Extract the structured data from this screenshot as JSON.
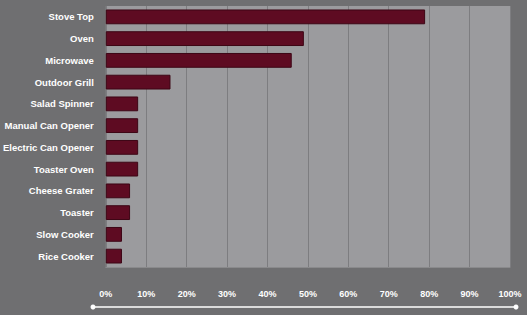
{
  "chart_data": {
    "type": "bar",
    "orientation": "horizontal",
    "categories": [
      "Stove Top",
      "Oven",
      "Microwave",
      "Outdoor Grill",
      "Salad Spinner",
      "Manual Can Opener",
      "Electric Can Opener",
      "Toaster Oven",
      "Cheese Grater",
      "Toaster",
      "Slow Cooker",
      "Rice Cooker"
    ],
    "values": [
      79,
      49,
      46,
      16,
      8,
      8,
      8,
      8,
      6,
      6,
      4,
      4
    ],
    "color": "#5e0b22",
    "xlim": [
      0,
      100
    ],
    "xticks": [
      {
        "value": 0,
        "label": "0%"
      },
      {
        "value": 10,
        "label": "10%"
      },
      {
        "value": 20,
        "label": "20%"
      },
      {
        "value": 30,
        "label": "30%"
      },
      {
        "value": 40,
        "label": "40%"
      },
      {
        "value": 50,
        "label": "50%"
      },
      {
        "value": 60,
        "label": "60%"
      },
      {
        "value": 70,
        "label": "70%"
      },
      {
        "value": 80,
        "label": "80%"
      },
      {
        "value": 90,
        "label": "90%"
      },
      {
        "value": 100,
        "label": "100%"
      }
    ],
    "grid": true
  }
}
